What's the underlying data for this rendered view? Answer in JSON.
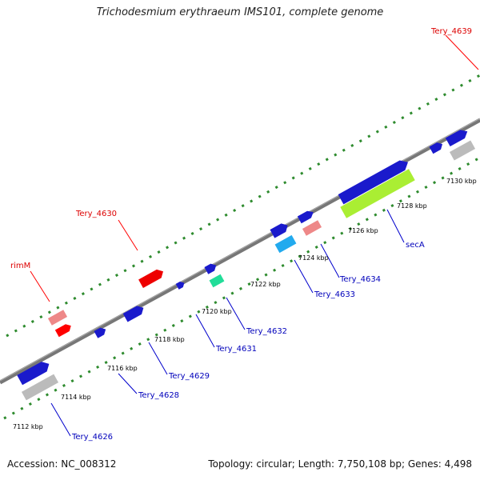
{
  "title": "Trichodesmium erythraeum IMS101, complete genome",
  "footer": {
    "accession": "Accession: NC_008312",
    "topology": "Topology: circular; Length: 7,750,108 bp; Genes: 4,498"
  },
  "colors": {
    "backbone": "#777777",
    "tick_dots": "#2e8b2e",
    "highlight_label": "#dd0000",
    "normal_label": "#0000bb"
  },
  "kbp_labels": [
    "7112 kbp",
    "7114 kbp",
    "7116 kbp",
    "7118 kbp",
    "7120 kbp",
    "7122 kbp",
    "7124 kbp",
    "7126 kbp",
    "7128 kbp",
    "7130 kbp"
  ],
  "gene_labels": [
    {
      "text": "Tery_4639",
      "color": "#dd0000"
    },
    {
      "text": "Tery_4630",
      "color": "#dd0000"
    },
    {
      "text": "rimM",
      "color": "#dd0000"
    },
    {
      "text": "Tery_4626",
      "color": "#0000bb"
    },
    {
      "text": "Tery_4628",
      "color": "#0000bb"
    },
    {
      "text": "Tery_4629",
      "color": "#0000bb"
    },
    {
      "text": "Tery_4631",
      "color": "#0000bb"
    },
    {
      "text": "Tery_4632",
      "color": "#0000bb"
    },
    {
      "text": "Tery_4633",
      "color": "#0000bb"
    },
    {
      "text": "Tery_4634",
      "color": "#0000bb"
    },
    {
      "text": "secA",
      "color": "#0000bb"
    }
  ]
}
